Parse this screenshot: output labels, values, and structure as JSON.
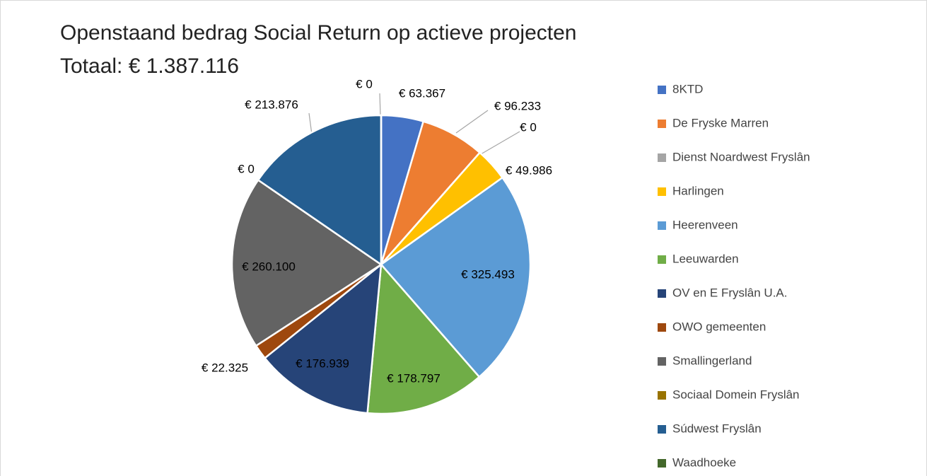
{
  "chart_data": {
    "type": "pie",
    "title": "Openstaand bedrag Social Return op actieve projecten",
    "subtitle": "Totaal: € 1.387.116",
    "categories": [
      "8KTD",
      "De Fryske Marren",
      "Dienst Noardwest Fryslân",
      "Harlingen",
      "Heerenveen",
      "Leeuwarden",
      "OV en E Fryslân U.A.",
      "OWO gemeenten",
      "Smallingerland",
      "Sociaal Domein Fryslân",
      "Súdwest Fryslân",
      "Waadhoeke"
    ],
    "values": [
      63367,
      96233,
      0,
      49986,
      325493,
      178797,
      176939,
      22325,
      260100,
      0,
      213876,
      0
    ],
    "value_labels": [
      "€ 63.367",
      "€ 96.233",
      "€ 0",
      "€ 49.986",
      "€ 325.493",
      "€ 178.797",
      "€ 176.939",
      "€ 22.325",
      "€ 260.100",
      "€ 0",
      "€ 213.876",
      "€ 0"
    ],
    "colors": [
      "#4472c4",
      "#ed7d31",
      "#a5a5a5",
      "#ffc000",
      "#5b9bd5",
      "#70ad47",
      "#264478",
      "#9e480e",
      "#636363",
      "#997300",
      "#255e91",
      "#43682b"
    ],
    "legend": "right"
  }
}
